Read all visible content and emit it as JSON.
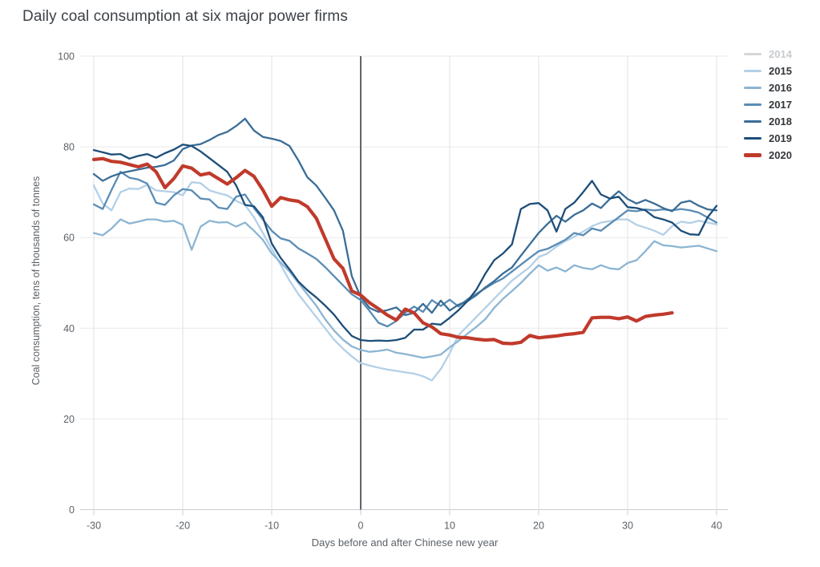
{
  "chart_data": {
    "type": "line",
    "title": "Daily coal consumption at six major power firms",
    "xlabel": "Days before and after Chinese new year",
    "ylabel": "Coal consumption, tens of thousands of tonnes",
    "xlim": [
      -30,
      40
    ],
    "ylim": [
      0,
      100
    ],
    "x_ticks": [
      -30,
      -20,
      -10,
      0,
      10,
      20,
      30,
      40
    ],
    "y_ticks": [
      0,
      20,
      40,
      60,
      80,
      100
    ],
    "grid": true,
    "legend_position": "top-right",
    "zero_line_x": 0,
    "x": [
      -30,
      -29,
      -28,
      -27,
      -26,
      -25,
      -24,
      -23,
      -22,
      -21,
      -20,
      -19,
      -18,
      -17,
      -16,
      -15,
      -14,
      -13,
      -12,
      -11,
      -10,
      -9,
      -8,
      -7,
      -6,
      -5,
      -4,
      -3,
      -2,
      -1,
      0,
      1,
      2,
      3,
      4,
      5,
      6,
      7,
      8,
      9,
      10,
      11,
      12,
      13,
      14,
      15,
      16,
      17,
      18,
      19,
      20,
      21,
      22,
      23,
      24,
      25,
      26,
      27,
      28,
      29,
      30,
      31,
      32,
      33,
      34,
      35,
      36,
      37,
      38,
      39,
      40
    ],
    "series": [
      {
        "name": "2014",
        "color": "#d4d7da",
        "muted": true,
        "values": []
      },
      {
        "name": "2015",
        "color": "#b3d0e7",
        "muted": false,
        "values": [
          71.5,
          67.5,
          66,
          70,
          70.8,
          70.7,
          71.6,
          70.4,
          70.2,
          70,
          69.3,
          72.2,
          72,
          70.4,
          69.8,
          69.3,
          68.1,
          67.2,
          64.5,
          61,
          57.5,
          54,
          50.5,
          47.5,
          45,
          42.5,
          40,
          37.5,
          35.5,
          33.8,
          32.3,
          31.8,
          31.3,
          30.9,
          30.6,
          30.3,
          30,
          29.4,
          28.5,
          31,
          34.5,
          38.5,
          40.5,
          42.5,
          44.5,
          46.5,
          48.5,
          50.5,
          52,
          53.5,
          55.7,
          56.5,
          58,
          59.2,
          60.2,
          61.3,
          62.5,
          63.3,
          63.6,
          64,
          64,
          62.8,
          62.2,
          61.5,
          60.6,
          62.5,
          63.5,
          63.2,
          63.7,
          63.3,
          62.9
        ]
      },
      {
        "name": "2016",
        "color": "#8cb5d3",
        "muted": false,
        "values": [
          61,
          60.5,
          62,
          64,
          63.1,
          63.5,
          64,
          64,
          63.5,
          63.7,
          62.8,
          57.3,
          62.4,
          63.7,
          63.3,
          63.4,
          62.4,
          63.3,
          61.5,
          59.5,
          56.5,
          54.5,
          52.5,
          50,
          47.5,
          45,
          42,
          39.5,
          37.5,
          36,
          35.2,
          34.8,
          35,
          35.3,
          34.6,
          34.3,
          33.9,
          33.5,
          33.8,
          34.2,
          35.8,
          37.2,
          38.8,
          40.3,
          42,
          44.5,
          46.5,
          48.2,
          50,
          52,
          53.9,
          52.7,
          53.4,
          52.5,
          53.9,
          53.3,
          53,
          53.9,
          53.2,
          53,
          54.4,
          55,
          57,
          59.2,
          58.3,
          58.1,
          57.8,
          58,
          58.2,
          57.6,
          57
        ]
      },
      {
        "name": "2017",
        "color": "#5a8cb4",
        "muted": false,
        "values": [
          67.3,
          66.3,
          70.5,
          74.5,
          73.2,
          72.8,
          71.9,
          67.7,
          67.2,
          69.3,
          70.7,
          70.4,
          68.6,
          68.4,
          66.6,
          66.3,
          69,
          69.5,
          66.5,
          64,
          61.5,
          59.8,
          59.3,
          57.6,
          56.5,
          55.3,
          53.5,
          51.5,
          49.5,
          47.5,
          46.2,
          43.8,
          41.2,
          40.4,
          41.6,
          43.4,
          44.8,
          43.6,
          46.2,
          44.9,
          46.3,
          44.8,
          46.4,
          47.6,
          48.8,
          50,
          51,
          52.5,
          54,
          55.5,
          57,
          57.5,
          58.5,
          59.5,
          61,
          60.5,
          62,
          61.5,
          63,
          64.5,
          66,
          65.8,
          66.2,
          66,
          66.2,
          66,
          66.3,
          66,
          65.5,
          64.4,
          63.3
        ]
      },
      {
        "name": "2018",
        "color": "#3a6d96",
        "muted": false,
        "values": [
          74,
          72.5,
          73.5,
          74.2,
          74.6,
          75,
          75.4,
          75.6,
          76,
          77,
          79.5,
          80.3,
          80.6,
          81.5,
          82.6,
          83.3,
          84.6,
          86.2,
          83.6,
          82.2,
          81.8,
          81.3,
          80.2,
          77,
          73.3,
          71.5,
          68.8,
          66,
          61.5,
          51.5,
          46.9,
          44.5,
          43.6,
          44,
          44.6,
          42.9,
          43.4,
          45.4,
          43.4,
          46.1,
          43.9,
          45.2,
          46,
          47.3,
          49,
          50.4,
          52.1,
          53.4,
          56,
          58.5,
          61,
          63,
          64.8,
          63.5,
          65,
          66,
          67.5,
          66.5,
          68.5,
          70.2,
          68.5,
          67.5,
          68.3,
          67.5,
          66.5,
          65.8,
          67.7,
          68.1,
          67,
          66.2,
          66
        ]
      },
      {
        "name": "2019",
        "color": "#1d4e79",
        "muted": false,
        "values": [
          79.3,
          78.8,
          78.3,
          78.4,
          77.4,
          78,
          78.4,
          77.6,
          78.6,
          79.4,
          80.5,
          80.2,
          79,
          77.5,
          76,
          74.5,
          71.5,
          67.2,
          66.9,
          64.5,
          58.7,
          55.5,
          53,
          50.3,
          48.4,
          46.8,
          45,
          43,
          40.5,
          38.3,
          37.4,
          37.2,
          37.3,
          37.2,
          37.4,
          37.9,
          39.7,
          39.7,
          41,
          40.8,
          42.3,
          44,
          46,
          48.5,
          52,
          55,
          56.5,
          58.5,
          66.3,
          67.4,
          67.6,
          66,
          61.3,
          66.3,
          67.7,
          70,
          72.5,
          69.5,
          68.6,
          69,
          66.7,
          66.5,
          66,
          64.5,
          64,
          63.3,
          61.5,
          60.7,
          60.6,
          64.5,
          67
        ]
      },
      {
        "name": "2020",
        "color": "#c03a2b",
        "muted": false,
        "emphasis": true,
        "values": [
          77.2,
          77.4,
          76.8,
          76.6,
          76.1,
          75.6,
          76.2,
          74.5,
          71,
          73,
          75.8,
          75.3,
          73.8,
          74.2,
          73,
          71.8,
          73.2,
          74.8,
          73.5,
          70.5,
          66.9,
          68.8,
          68.3,
          68,
          66.8,
          64.3,
          59.8,
          55.3,
          53.2,
          48.2,
          47.3,
          45.6,
          44.3,
          42.9,
          41.8,
          44.2,
          43.4,
          41.2,
          40.3,
          38.8,
          38.5,
          38,
          37.9,
          37.6,
          37.4,
          37.5,
          36.7,
          36.6,
          36.9,
          38.4,
          37.9,
          38.1,
          38.3,
          38.6,
          38.8,
          39.1,
          42.3,
          42.4,
          42.4,
          42.1,
          42.5,
          41.6,
          42.6,
          42.9,
          43.1,
          43.4
        ]
      }
    ],
    "colors": {
      "title_text": "#3d4247",
      "axis_text": "#5b6167",
      "tick_text": "#5c6268",
      "grid": "#e9e9e9",
      "vertical_grid": "#e2e2e2",
      "axis_line": "#c9ced4",
      "zero_line": "#3a3e42",
      "legend_text": "#33373b",
      "legend_muted_text": "#c7cbcf"
    }
  }
}
